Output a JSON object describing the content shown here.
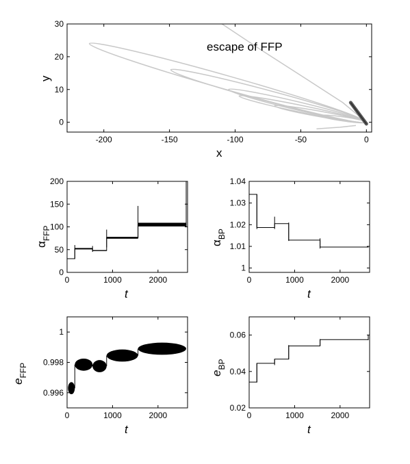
{
  "chart_data": [
    {
      "type": "line",
      "id": "orbit",
      "annotation": "escape of FFP",
      "xlabel": "x",
      "ylabel": "y",
      "xlim": [
        -228,
        4
      ],
      "ylim": [
        -3,
        30
      ],
      "xticks": [
        -200,
        -150,
        -100,
        -50,
        0
      ],
      "yticks": [
        0,
        10,
        20,
        30
      ],
      "series": [
        {
          "role": "FFP orbit",
          "color": "#c8c8c8",
          "ellipses": [
            {
              "apocenter": [
                -211,
                24
              ],
              "width": 10
            },
            {
              "apocenter": [
                -149,
                16
              ],
              "width": 8
            },
            {
              "apocenter": [
                -105,
                10
              ],
              "width": 6
            },
            {
              "apocenter": [
                -97,
                8
              ],
              "width": 5
            },
            {
              "apocenter": [
                -70,
                5
              ],
              "width": 4
            },
            {
              "apocenter": [
                -35,
                2
              ],
              "width": 3
            }
          ],
          "escape": [
            [
              0,
              0
            ],
            [
              -18,
              6
            ],
            [
              -45,
              13
            ],
            [
              -80,
              22
            ],
            [
              -110,
              30
            ]
          ],
          "tail": [
            [
              -8,
              -1
            ],
            [
              -20,
              -1.5
            ],
            [
              -38,
              -2
            ]
          ]
        },
        {
          "role": "BP orbit",
          "color": "#555555",
          "segment": [
            [
              -12,
              6
            ],
            [
              0,
              -0.5
            ]
          ]
        }
      ]
    },
    {
      "type": "line",
      "id": "alpha_ffp",
      "xlabel": "t",
      "ylabel": "α",
      "ylabel_sub": "FFP",
      "xlim": [
        0,
        2650
      ],
      "ylim": [
        0,
        200
      ],
      "xticks": [
        0,
        1000,
        2000
      ],
      "yticks": [
        0,
        50,
        100,
        150,
        200
      ],
      "steps": [
        [
          0,
          30
        ],
        [
          170,
          52
        ],
        [
          560,
          48
        ],
        [
          870,
          76
        ],
        [
          1560,
          105
        ],
        [
          2620,
          105
        ]
      ],
      "spikes": [
        [
          170,
          30,
          60
        ],
        [
          560,
          45,
          58
        ],
        [
          870,
          55,
          94
        ],
        [
          1560,
          75,
          146
        ],
        [
          2620,
          100,
          200
        ]
      ],
      "bands": [
        [
          170,
          560,
          3
        ],
        [
          560,
          870,
          2
        ],
        [
          870,
          1560,
          4
        ],
        [
          1560,
          2620,
          8
        ]
      ]
    },
    {
      "type": "line",
      "id": "alpha_bp",
      "xlabel": "t",
      "ylabel": "α",
      "ylabel_sub": "BP",
      "xlim": [
        0,
        2650
      ],
      "ylim": [
        0.998,
        1.04
      ],
      "xticks": [
        0,
        1000,
        2000
      ],
      "yticks": [
        1,
        1.01,
        1.02,
        1.03,
        1.04
      ],
      "steps": [
        [
          0,
          1.034
        ],
        [
          170,
          1.0187
        ],
        [
          560,
          1.0205
        ],
        [
          870,
          1.0129
        ],
        [
          1560,
          1.0097
        ],
        [
          2620,
          1.0098
        ]
      ],
      "spikes": [
        [
          170,
          1.018,
          1.034
        ],
        [
          560,
          1.018,
          1.0237
        ],
        [
          870,
          1.0125,
          1.021
        ],
        [
          1560,
          1.009,
          1.0137
        ]
      ]
    },
    {
      "type": "line",
      "id": "e_ffp",
      "xlabel": "t",
      "ylabel": "e",
      "ylabel_sub": "FFP",
      "xlim": [
        0,
        2650
      ],
      "ylim": [
        0.995,
        1.001
      ],
      "xticks": [
        0,
        1000,
        2000
      ],
      "yticks": [
        0.996,
        0.998,
        1
      ],
      "blobs": [
        {
          "x": [
            20,
            170
          ],
          "center": 0.9963,
          "half": 0.0004
        },
        {
          "x": [
            170,
            560
          ],
          "center": 0.99785,
          "half": 0.0004
        },
        {
          "x": [
            560,
            870
          ],
          "center": 0.99775,
          "half": 0.0004
        },
        {
          "x": [
            870,
            1560
          ],
          "center": 0.99845,
          "half": 0.0004
        },
        {
          "x": [
            1560,
            2620
          ],
          "center": 0.9989,
          "half": 0.0004
        }
      ]
    },
    {
      "type": "line",
      "id": "e_bp",
      "xlabel": "t",
      "ylabel": "e",
      "ylabel_sub": "BP",
      "xlim": [
        0,
        2650
      ],
      "ylim": [
        0.02,
        0.07
      ],
      "xticks": [
        0,
        1000,
        2000
      ],
      "yticks": [
        0.02,
        0.04,
        0.06
      ],
      "steps": [
        [
          0,
          0.0342
        ],
        [
          170,
          0.0445
        ],
        [
          560,
          0.0468
        ],
        [
          870,
          0.054
        ],
        [
          1560,
          0.0575
        ],
        [
          2620,
          0.0577
        ]
      ],
      "spikes": [
        [
          170,
          0.034,
          0.0445
        ],
        [
          560,
          0.0435,
          0.0468
        ],
        [
          870,
          0.0468,
          0.0545
        ],
        [
          1560,
          0.054,
          0.0578
        ],
        [
          2620,
          0.0572,
          0.06
        ]
      ]
    }
  ]
}
